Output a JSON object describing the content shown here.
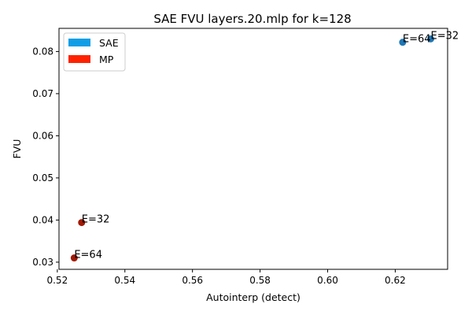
{
  "chart_data": {
    "type": "scatter",
    "title": "SAE FVU layers.20.mlp for k=128",
    "xlabel": "Autointerp (detect)",
    "ylabel": "FVU",
    "xlim": [
      0.5205,
      0.6355
    ],
    "ylim": [
      0.0283,
      0.0855
    ],
    "xticks": [
      0.52,
      0.54,
      0.56,
      0.58,
      0.6,
      0.62
    ],
    "xtick_labels": [
      "0.52",
      "0.54",
      "0.56",
      "0.58",
      "0.60",
      "0.62"
    ],
    "yticks": [
      0.03,
      0.04,
      0.05,
      0.06,
      0.07,
      0.08
    ],
    "ytick_labels": [
      "0.03",
      "0.04",
      "0.05",
      "0.06",
      "0.07",
      "0.08"
    ],
    "grid": false,
    "legend_position": "top-left",
    "legend": [
      {
        "label": "SAE",
        "color": "#0f9ee6"
      },
      {
        "label": "MP",
        "color": "#ff2200"
      }
    ],
    "series": [
      {
        "name": "SAE",
        "color": "#1f77b4",
        "points": [
          {
            "x": 0.6305,
            "y": 0.083,
            "label": "E=32"
          },
          {
            "x": 0.6222,
            "y": 0.0822,
            "label": "E=64"
          }
        ]
      },
      {
        "name": "MP",
        "color": "#a11a05",
        "points": [
          {
            "x": 0.5272,
            "y": 0.0394,
            "label": "E=32"
          },
          {
            "x": 0.525,
            "y": 0.031,
            "label": "E=64"
          }
        ]
      }
    ]
  }
}
